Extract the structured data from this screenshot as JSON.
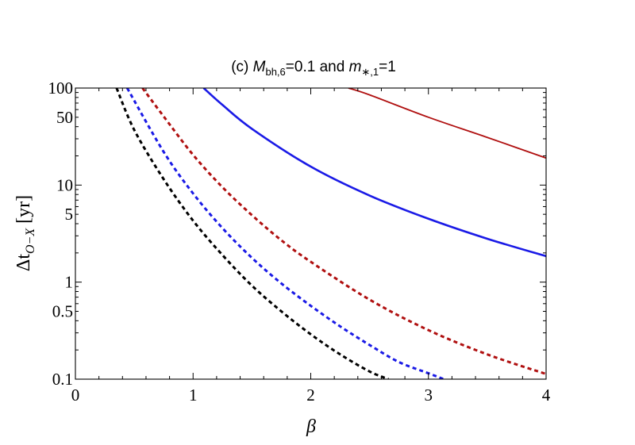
{
  "chart_data": {
    "type": "line",
    "title": {
      "prefix": "(c) ",
      "m_bh_symbol": "M",
      "m_bh_subscript": "bh,6",
      "m_bh_value": "=0.1",
      "connector": " and ",
      "m_star_symbol": "m",
      "m_star_subscript": "∗,1",
      "m_star_value": "=1"
    },
    "xlabel": "β",
    "ylabel": {
      "main": "Δt",
      "subscript": "O−X",
      "unit": " [yr]"
    },
    "x_axis": {
      "range": [
        0,
        4
      ],
      "ticks": [
        0,
        1,
        2,
        3,
        4
      ],
      "tick_labels": [
        "0",
        "1",
        "2",
        "3",
        "4"
      ]
    },
    "y_axis": {
      "scale": "log",
      "range": [
        0.1,
        100
      ],
      "ticks": [
        0.1,
        0.5,
        1,
        5,
        10,
        50,
        100
      ],
      "tick_labels": [
        "0.1",
        "0.5",
        "1",
        "5",
        "10",
        "50",
        "100"
      ]
    },
    "grid": false,
    "series": [
      {
        "color": "#000000",
        "style": "dashed",
        "points": [
          [
            0.35,
            100
          ],
          [
            0.5,
            37
          ],
          [
            0.75,
            11.5
          ],
          [
            1.0,
            4.3
          ],
          [
            1.25,
            1.9
          ],
          [
            1.5,
            0.92
          ],
          [
            1.75,
            0.5
          ],
          [
            2.0,
            0.29
          ],
          [
            2.25,
            0.18
          ],
          [
            2.5,
            0.12
          ],
          [
            2.66,
            0.1
          ]
        ]
      },
      {
        "color": "#1a1ae6",
        "style": "dashed",
        "points": [
          [
            0.44,
            100
          ],
          [
            0.75,
            22
          ],
          [
            1.0,
            8.2
          ],
          [
            1.25,
            3.6
          ],
          [
            1.5,
            1.78
          ],
          [
            1.75,
            0.97
          ],
          [
            2.0,
            0.57
          ],
          [
            2.25,
            0.35
          ],
          [
            2.5,
            0.225
          ],
          [
            2.75,
            0.15
          ],
          [
            3.0,
            0.115
          ],
          [
            3.13,
            0.1
          ]
        ]
      },
      {
        "color": "#b01010",
        "style": "dashed",
        "points": [
          [
            0.57,
            100
          ],
          [
            0.75,
            51
          ],
          [
            1.0,
            20.5
          ],
          [
            1.25,
            9.5
          ],
          [
            1.5,
            4.9
          ],
          [
            1.75,
            2.7
          ],
          [
            2.0,
            1.62
          ],
          [
            2.5,
            0.66
          ],
          [
            3.0,
            0.32
          ],
          [
            3.5,
            0.18
          ],
          [
            4.0,
            0.113
          ]
        ]
      },
      {
        "color": "#1a1ae6",
        "style": "solid",
        "points": [
          [
            1.09,
            100
          ],
          [
            1.25,
            67
          ],
          [
            1.5,
            38
          ],
          [
            2.0,
            15.5
          ],
          [
            2.5,
            7.8
          ],
          [
            3.0,
            4.5
          ],
          [
            3.5,
            2.8
          ],
          [
            4.0,
            1.85
          ]
        ]
      },
      {
        "color": "#b01010",
        "style": "solid",
        "points": [
          [
            2.32,
            100
          ],
          [
            2.5,
            85
          ],
          [
            3.0,
            50
          ],
          [
            3.5,
            31
          ],
          [
            4.0,
            19
          ]
        ]
      }
    ]
  }
}
